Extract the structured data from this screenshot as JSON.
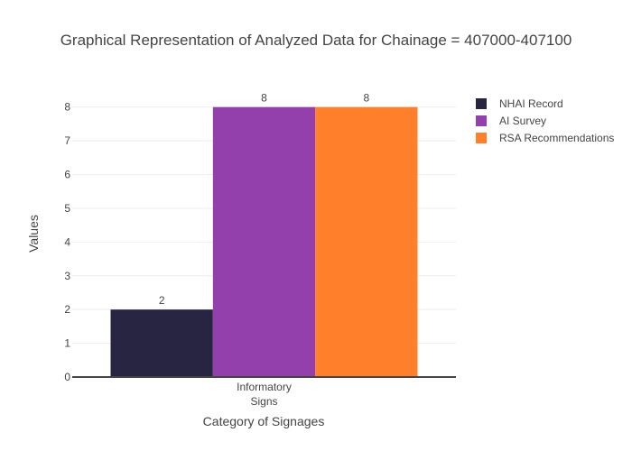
{
  "chart_data": {
    "type": "bar",
    "title": "Graphical Representation of Analyzed Data for Chainage = 407000-407100",
    "xlabel": "Category of Signages",
    "ylabel": "Values",
    "categories": [
      [
        "Informatory",
        "Signs"
      ]
    ],
    "series": [
      {
        "name": "NHAI Record",
        "values": [
          2
        ],
        "color": "#272541"
      },
      {
        "name": "AI Survey",
        "values": [
          8
        ],
        "color": "#9440ac"
      },
      {
        "name": "RSA Recommendations",
        "values": [
          8
        ],
        "color": "#ff7f2a"
      }
    ],
    "ylim": [
      0,
      8.5
    ],
    "yticks": [
      0,
      1,
      2,
      3,
      4,
      5,
      6,
      7,
      8
    ],
    "grid": true,
    "legend_position": "top-right"
  }
}
